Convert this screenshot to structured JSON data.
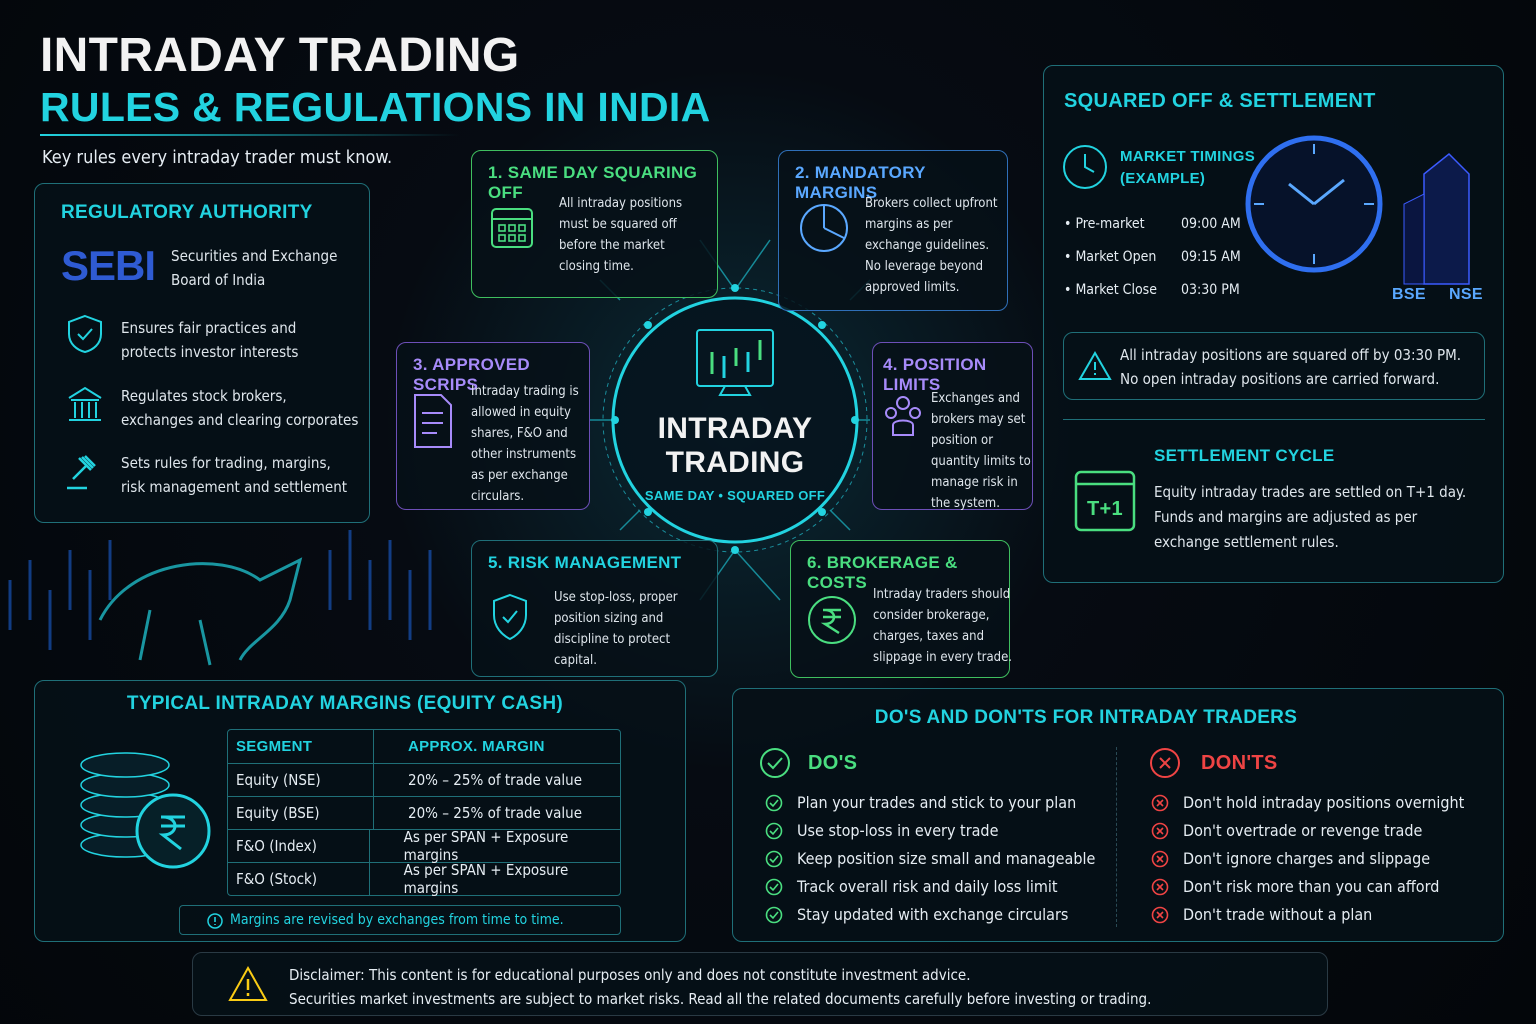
{
  "header": {
    "title": "INTRADAY TRADING",
    "subtitle": "RULES & REGULATIONS IN INDIA",
    "tagline": "Key rules every intraday trader must know."
  },
  "authority": {
    "title": "REGULATORY AUTHORITY",
    "logo": "SEBI",
    "name": "Securities and Exchange Board of India",
    "items": [
      "Ensures fair practices and protects investor interests",
      "Regulates stock brokers, exchanges and clearing corporates",
      "Sets rules for trading, margins, risk management and settlement"
    ]
  },
  "center": {
    "title": "INTRADAY TRADING",
    "subtitle": "SAME DAY • SQUARED OFF"
  },
  "rules": [
    {
      "title": "1. SAME DAY SQUARING OFF",
      "text": "All intraday positions must be squared off before the market closing time."
    },
    {
      "title": "2. MANDATORY MARGINS",
      "text": "Brokers collect upfront margins as per exchange guidelines. No leverage beyond approved limits."
    },
    {
      "title": "3. APPROVED SCRIPS",
      "text": "Intraday trading is allowed in equity shares, F&O and other instruments as per exchange circulars."
    },
    {
      "title": "4. POSITION LIMITS",
      "text": "Exchanges and brokers may set position or quantity limits to manage risk in the system."
    },
    {
      "title": "5. RISK MANAGEMENT",
      "text": "Use stop-loss, proper position sizing and discipline to protect capital."
    },
    {
      "title": "6. BROKERAGE & COSTS",
      "text": "Intraday traders should consider brokerage, charges, taxes and slippage in every trade."
    }
  ],
  "settlement": {
    "title": "SQUARED OFF & SETTLEMENT",
    "timings_title": "MARKET TIMINGS (EXAMPLE)",
    "timings": [
      {
        "label": "Pre-market",
        "time": "09:00 AM"
      },
      {
        "label": "Market Open",
        "time": "09:15 AM"
      },
      {
        "label": "Market Close",
        "time": "03:30 PM"
      }
    ],
    "exchanges": [
      "BSE",
      "NSE"
    ],
    "note": "All intraday positions are squared off by 03:30 PM. No open intraday positions are carried forward.",
    "cycle_title": "SETTLEMENT CYCLE",
    "cycle_icon": "T+1",
    "cycle_text": "Equity intraday trades are settled on T+1 day. Funds and margins are adjusted as per exchange settlement rules."
  },
  "margins": {
    "title": "TYPICAL INTRADAY MARGINS (EQUITY CASH)",
    "table": {
      "header": [
        "SEGMENT",
        "APPROX. MARGIN"
      ],
      "rows": [
        [
          "Equity (NSE)",
          "20% – 25% of trade value"
        ],
        [
          "Equity (BSE)",
          "20% – 25% of trade value"
        ],
        [
          "F&O (Index)",
          "As per SPAN + Exposure margins"
        ],
        [
          "F&O (Stock)",
          "As per SPAN + Exposure margins"
        ]
      ]
    },
    "note": "Margins are revised by exchanges from time to time."
  },
  "dos_donts": {
    "title": "DO'S AND DON'TS FOR INTRADAY TRADERS",
    "dos_title": "DO'S",
    "dos": [
      "Plan your trades and stick to your plan",
      "Use stop-loss in every trade",
      "Keep position size small and manageable",
      "Track overall risk and daily loss limit",
      "Stay updated with exchange circulars"
    ],
    "donts_title": "DON'TS",
    "donts": [
      "Don't hold intraday positions overnight",
      "Don't overtrade or revenge trade",
      "Don't ignore charges and slippage",
      "Don't risk more than you can afford",
      "Don't trade without a plan"
    ]
  },
  "disclaimer": {
    "label": "Disclaimer:",
    "text": "This content is for educational purposes only and does not constitute investment advice.",
    "text2": "Securities market investments are subject to market risks. Read all the related documents carefully before investing or trading."
  }
}
